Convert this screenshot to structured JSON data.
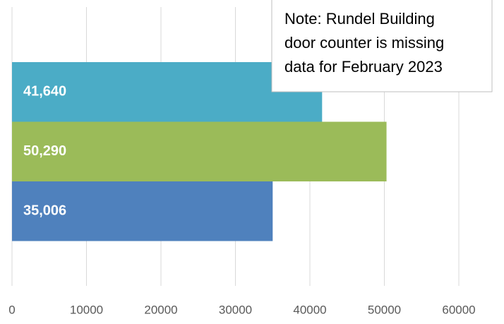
{
  "chart_data": {
    "type": "bar",
    "orientation": "horizontal",
    "categories": [
      null,
      null,
      null
    ],
    "values": [
      41640,
      50290,
      35006
    ],
    "value_labels": [
      "41,640",
      "50,290",
      "35,006"
    ],
    "colors": [
      "#4bacc6",
      "#9bbb59",
      "#4f81bd"
    ],
    "xlim": [
      0,
      60000
    ],
    "xticks": [
      0,
      10000,
      20000,
      30000,
      40000,
      50000,
      60000
    ],
    "grid": true,
    "annotation": [
      "Note: Rundel Building",
      "door counter is missing",
      "data for February 2023"
    ]
  }
}
